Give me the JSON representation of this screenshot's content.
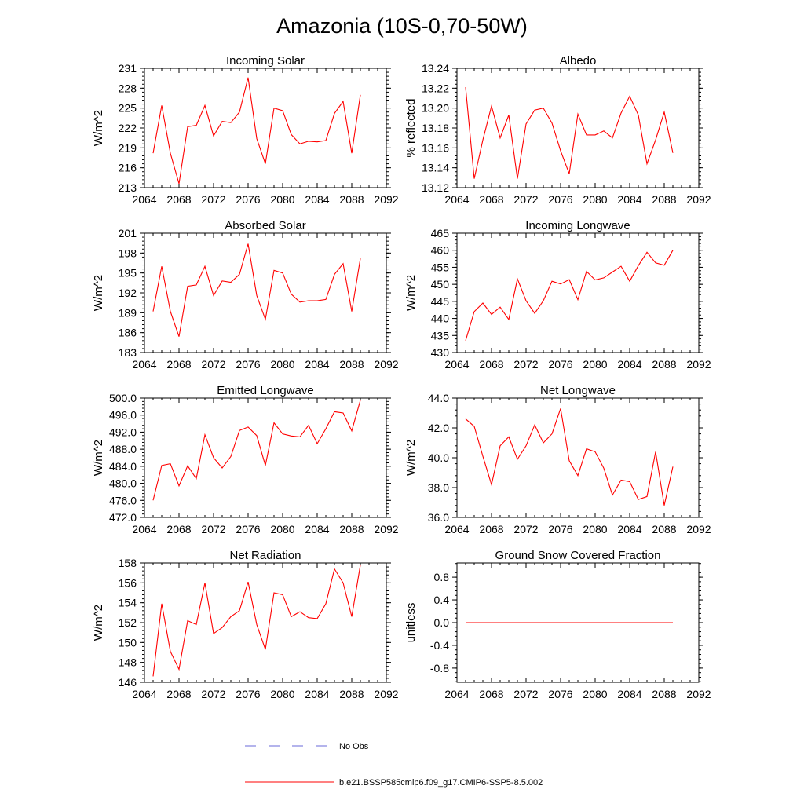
{
  "figure": {
    "title": "Amazonia (10S-0,70-50W)",
    "line_color": "#ff0000",
    "obs_color": "#6a6ad8"
  },
  "legend": {
    "obs_label": "No Obs",
    "model_label": "b.e21.BSSP585cmip6.f09_g17.CMIP6-SSP5-8.5.002"
  },
  "chart_data": [
    {
      "type": "line",
      "title": "Incoming Solar",
      "ylabel": "W/m^2",
      "xlim": [
        2064,
        2092
      ],
      "ylim": [
        213,
        231
      ],
      "xticks": [
        "2064",
        "2068",
        "2072",
        "2076",
        "2080",
        "2084",
        "2088",
        "2092"
      ],
      "yticks": [
        "213",
        "216",
        "219",
        "222",
        "225",
        "228",
        "231"
      ],
      "x": [
        2065,
        2066,
        2067,
        2068,
        2069,
        2070,
        2071,
        2072,
        2073,
        2074,
        2075,
        2076,
        2077,
        2078,
        2079,
        2080,
        2081,
        2082,
        2083,
        2084,
        2085,
        2086,
        2087,
        2088,
        2089
      ],
      "values": [
        218.2,
        225.4,
        218.2,
        213.6,
        222.2,
        222.4,
        225.4,
        220.8,
        223.0,
        222.8,
        224.4,
        229.6,
        220.4,
        216.6,
        225.0,
        224.6,
        221.0,
        219.6,
        220.0,
        219.9,
        220.1,
        224.2,
        226.0,
        218.2,
        227.0
      ]
    },
    {
      "type": "line",
      "title": "Albedo",
      "ylabel": "% reflected",
      "xlim": [
        2064,
        2092
      ],
      "ylim": [
        13.12,
        13.24
      ],
      "xticks": [
        "2064",
        "2068",
        "2072",
        "2076",
        "2080",
        "2084",
        "2088",
        "2092"
      ],
      "yticks": [
        "13.12",
        "13.14",
        "13.16",
        "13.18",
        "13.20",
        "13.22",
        "13.24"
      ],
      "x": [
        2065,
        2066,
        2067,
        2068,
        2069,
        2070,
        2071,
        2072,
        2073,
        2074,
        2075,
        2076,
        2077,
        2078,
        2079,
        2080,
        2081,
        2082,
        2083,
        2084,
        2085,
        2086,
        2087,
        2088,
        2089
      ],
      "values": [
        13.221,
        13.129,
        13.168,
        13.202,
        13.17,
        13.193,
        13.129,
        13.184,
        13.198,
        13.2,
        13.185,
        13.157,
        13.134,
        13.194,
        13.173,
        13.173,
        13.177,
        13.17,
        13.195,
        13.212,
        13.193,
        13.144,
        13.168,
        13.196,
        13.155
      ]
    },
    {
      "type": "line",
      "title": "Absorbed Solar",
      "ylabel": "W/m^2",
      "xlim": [
        2064,
        2092
      ],
      "ylim": [
        183,
        201
      ],
      "xticks": [
        "2064",
        "2068",
        "2072",
        "2076",
        "2080",
        "2084",
        "2088",
        "2092"
      ],
      "yticks": [
        "183",
        "186",
        "189",
        "192",
        "195",
        "198",
        "201"
      ],
      "x": [
        2065,
        2066,
        2067,
        2068,
        2069,
        2070,
        2071,
        2072,
        2073,
        2074,
        2075,
        2076,
        2077,
        2078,
        2079,
        2080,
        2081,
        2082,
        2083,
        2084,
        2085,
        2086,
        2087,
        2088,
        2089
      ],
      "values": [
        189.2,
        196.0,
        189.2,
        185.4,
        193.0,
        193.2,
        196.0,
        191.6,
        193.8,
        193.6,
        194.8,
        199.4,
        191.6,
        188.0,
        195.4,
        195.0,
        191.8,
        190.6,
        190.8,
        190.8,
        191.0,
        194.8,
        196.4,
        189.2,
        197.2
      ]
    },
    {
      "type": "line",
      "title": "Incoming Longwave",
      "ylabel": "W/m^2",
      "xlim": [
        2064,
        2092
      ],
      "ylim": [
        430,
        465
      ],
      "xticks": [
        "2064",
        "2068",
        "2072",
        "2076",
        "2080",
        "2084",
        "2088",
        "2092"
      ],
      "yticks": [
        "430",
        "435",
        "440",
        "445",
        "450",
        "455",
        "460",
        "465"
      ],
      "x": [
        2065,
        2066,
        2067,
        2068,
        2069,
        2070,
        2071,
        2072,
        2073,
        2074,
        2075,
        2076,
        2077,
        2078,
        2079,
        2080,
        2081,
        2082,
        2083,
        2084,
        2085,
        2086,
        2087,
        2088,
        2089
      ],
      "values": [
        433.5,
        442.0,
        444.5,
        441.2,
        443.3,
        439.7,
        451.6,
        445.2,
        441.5,
        445.2,
        450.9,
        450.1,
        451.4,
        445.5,
        453.8,
        451.3,
        451.9,
        453.6,
        455.3,
        450.9,
        455.5,
        459.4,
        456.3,
        455.6,
        460.0
      ]
    },
    {
      "type": "line",
      "title": "Emitted Longwave",
      "ylabel": "W/m^2",
      "xlim": [
        2064,
        2092
      ],
      "ylim": [
        472,
        500
      ],
      "xticks": [
        "2064",
        "2068",
        "2072",
        "2076",
        "2080",
        "2084",
        "2088",
        "2092"
      ],
      "yticks": [
        "472.0",
        "476.0",
        "480.0",
        "484.0",
        "488.0",
        "492.0",
        "496.0",
        "500.0"
      ],
      "x": [
        2065,
        2066,
        2067,
        2068,
        2069,
        2070,
        2071,
        2072,
        2073,
        2074,
        2075,
        2076,
        2077,
        2078,
        2079,
        2080,
        2081,
        2082,
        2083,
        2084,
        2085,
        2086,
        2087,
        2088,
        2089
      ],
      "values": [
        476.0,
        484.2,
        484.6,
        479.4,
        484.1,
        481.1,
        491.4,
        486.0,
        483.6,
        486.3,
        492.4,
        493.2,
        491.2,
        484.2,
        494.2,
        491.6,
        491.1,
        490.9,
        493.6,
        489.3,
        492.8,
        496.8,
        496.5,
        492.3,
        499.5
      ]
    },
    {
      "type": "line",
      "title": "Net Longwave",
      "ylabel": "W/m^2",
      "xlim": [
        2064,
        2092
      ],
      "ylim": [
        36,
        44
      ],
      "xticks": [
        "2064",
        "2068",
        "2072",
        "2076",
        "2080",
        "2084",
        "2088",
        "2092"
      ],
      "yticks": [
        "36.0",
        "38.0",
        "40.0",
        "42.0",
        "44.0"
      ],
      "x": [
        2065,
        2066,
        2067,
        2068,
        2069,
        2070,
        2071,
        2072,
        2073,
        2074,
        2075,
        2076,
        2077,
        2078,
        2079,
        2080,
        2081,
        2082,
        2083,
        2084,
        2085,
        2086,
        2087,
        2088,
        2089
      ],
      "values": [
        42.6,
        42.1,
        40.1,
        38.2,
        40.8,
        41.4,
        39.9,
        40.8,
        42.2,
        41.0,
        41.6,
        43.3,
        39.8,
        38.8,
        40.6,
        40.4,
        39.3,
        37.5,
        38.5,
        38.4,
        37.2,
        37.4,
        40.4,
        36.8,
        39.4
      ]
    },
    {
      "type": "line",
      "title": "Net Radiation",
      "ylabel": "W/m^2",
      "xlim": [
        2064,
        2092
      ],
      "ylim": [
        146,
        158
      ],
      "xticks": [
        "2064",
        "2068",
        "2072",
        "2076",
        "2080",
        "2084",
        "2088",
        "2092"
      ],
      "yticks": [
        "146",
        "148",
        "150",
        "152",
        "154",
        "156",
        "158"
      ],
      "x": [
        2065,
        2066,
        2067,
        2068,
        2069,
        2070,
        2071,
        2072,
        2073,
        2074,
        2075,
        2076,
        2077,
        2078,
        2079,
        2080,
        2081,
        2082,
        2083,
        2084,
        2085,
        2086,
        2087,
        2088,
        2089
      ],
      "values": [
        146.6,
        153.9,
        149.1,
        147.3,
        152.2,
        151.8,
        156.0,
        150.9,
        151.5,
        152.6,
        153.2,
        156.1,
        151.8,
        149.3,
        155.0,
        154.8,
        152.6,
        153.1,
        152.5,
        152.4,
        153.9,
        157.4,
        156.0,
        152.6,
        157.8
      ]
    },
    {
      "type": "line",
      "title": "Ground Snow Covered Fraction",
      "ylabel": "unitless",
      "xlim": [
        2064,
        2092
      ],
      "ylim": [
        -1.05,
        1.05
      ],
      "xticks": [
        "2064",
        "2068",
        "2072",
        "2076",
        "2080",
        "2084",
        "2088",
        "2092"
      ],
      "yticks": [
        "-0.8",
        "-0.4",
        "0.0",
        "0.4",
        "0.8"
      ],
      "x": [
        2065,
        2066,
        2067,
        2068,
        2069,
        2070,
        2071,
        2072,
        2073,
        2074,
        2075,
        2076,
        2077,
        2078,
        2079,
        2080,
        2081,
        2082,
        2083,
        2084,
        2085,
        2086,
        2087,
        2088,
        2089
      ],
      "values": [
        0,
        0,
        0,
        0,
        0,
        0,
        0,
        0,
        0,
        0,
        0,
        0,
        0,
        0,
        0,
        0,
        0,
        0,
        0,
        0,
        0,
        0,
        0,
        0,
        0
      ]
    }
  ]
}
